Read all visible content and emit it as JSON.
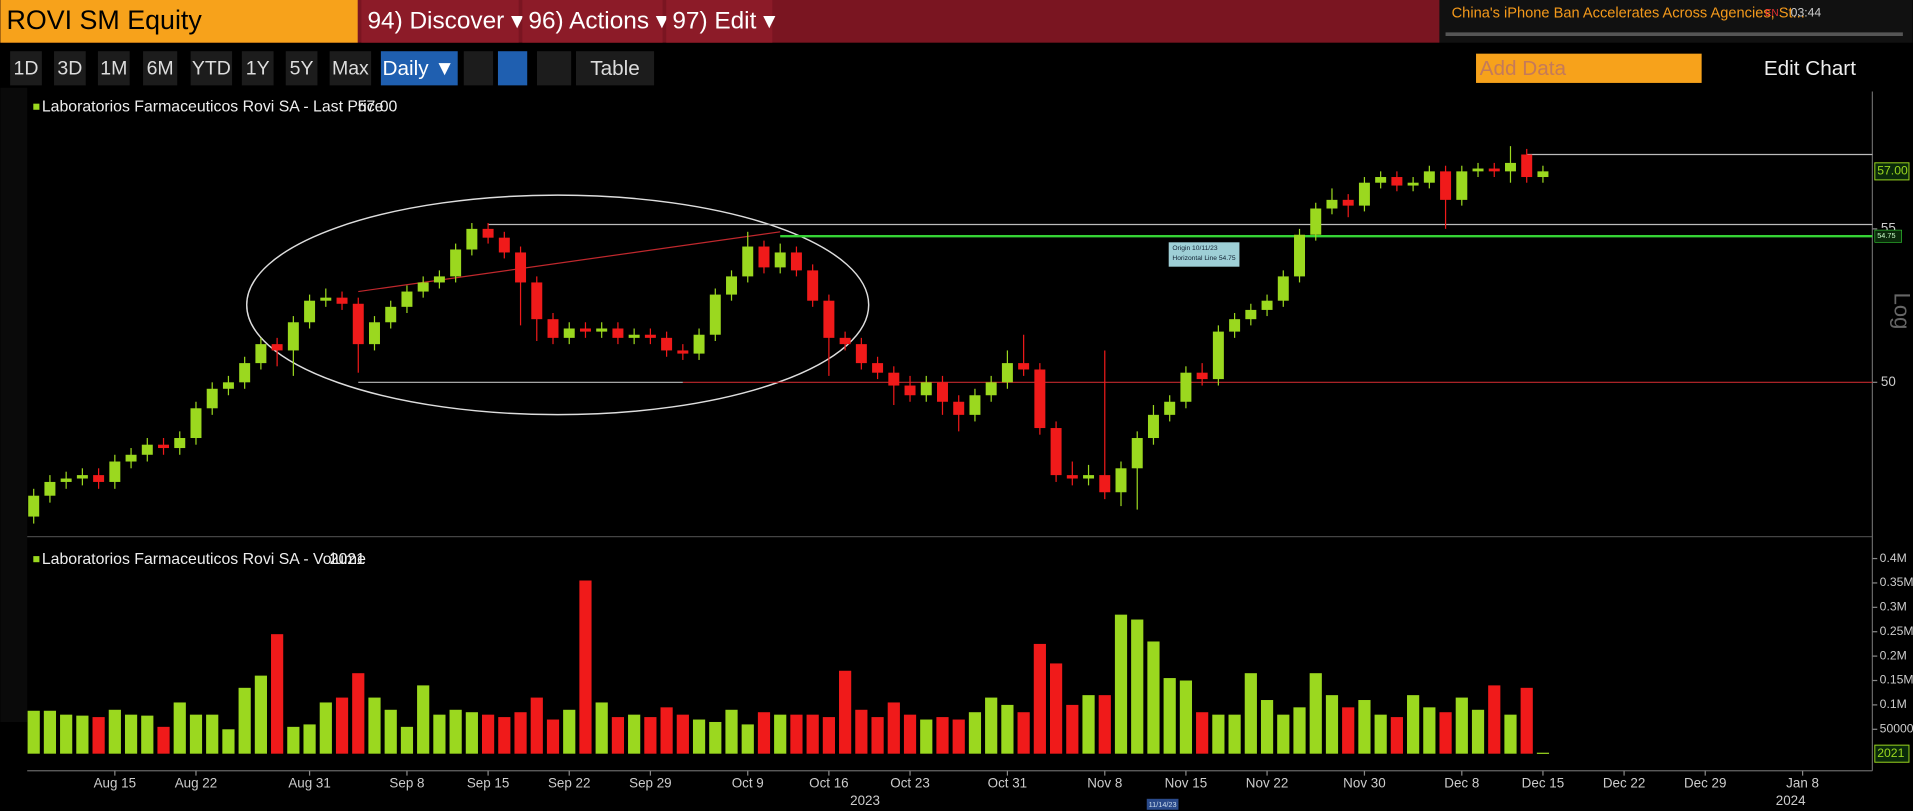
{
  "toolbar": {
    "security": "ROVI SM Equity",
    "menus": [
      "94) Discover ▾",
      "96) Actions ▾",
      "97) Edit ▾"
    ],
    "news": "China's iPhone Ban Accelerates Across Agencies, St...",
    "news_lang": "EN",
    "news_time": "03:44",
    "ranges": [
      "1D",
      "3D",
      "1M",
      "6M",
      "YTD",
      "1Y",
      "5Y",
      "Max"
    ],
    "frequency": "Daily ▼",
    "table": "Table",
    "add_data": "Add Data",
    "edit_chart": "Edit Chart"
  },
  "price_chart": {
    "type": "candlestick",
    "legend": "Laboratorios Farmaceuticos Rovi SA - Last Price",
    "last_label": "57.00",
    "axis_label": "Log",
    "log": true,
    "up_color": "#9bd81f",
    "down_color": "#f01a1a",
    "ylim": [
      45.5,
      59.9
    ],
    "yticks": [
      50,
      55
    ],
    "xlim": [
      -0.4,
      113.3
    ],
    "xticks": [
      {
        "value": 5,
        "label": "Aug 15"
      },
      {
        "value": 10,
        "label": "Aug 22"
      },
      {
        "value": 17,
        "label": "Aug 31"
      },
      {
        "value": 23,
        "label": "Sep 8"
      },
      {
        "value": 28,
        "label": "Sep 15"
      },
      {
        "value": 33,
        "label": "Sep 22"
      },
      {
        "value": 38,
        "label": "Sep 29"
      },
      {
        "value": 44,
        "label": "Oct 9"
      },
      {
        "value": 49,
        "label": "Oct 16"
      },
      {
        "value": 54,
        "label": "Oct 23"
      },
      {
        "value": 60,
        "label": "Oct 31"
      },
      {
        "value": 66,
        "label": "Nov 8"
      },
      {
        "value": 71,
        "label": "Nov 15"
      },
      {
        "value": 76,
        "label": "Nov 22"
      },
      {
        "value": 82,
        "label": "Nov 30"
      },
      {
        "value": 88,
        "label": "Dec 8"
      },
      {
        "value": 93,
        "label": "Dec 15"
      },
      {
        "value": 98,
        "label": "Dec 22"
      },
      {
        "value": 103,
        "label": "Dec 29"
      },
      {
        "value": 109,
        "label": "Jan 8"
      }
    ],
    "years": [
      "2023",
      "2024"
    ],
    "crosshair_date": "11/14/23",
    "candles": [
      [
        46.0,
        46.8,
        45.8,
        46.6
      ],
      [
        46.6,
        47.2,
        46.4,
        47.0
      ],
      [
        47.0,
        47.3,
        46.8,
        47.1
      ],
      [
        47.1,
        47.4,
        46.9,
        47.2
      ],
      [
        47.2,
        47.4,
        46.8,
        47.0
      ],
      [
        47.0,
        47.8,
        46.8,
        47.6
      ],
      [
        47.6,
        48.0,
        47.4,
        47.8
      ],
      [
        47.8,
        48.3,
        47.6,
        48.1
      ],
      [
        48.1,
        48.3,
        47.8,
        48.0
      ],
      [
        48.0,
        48.5,
        47.8,
        48.3
      ],
      [
        48.3,
        49.4,
        48.1,
        49.2
      ],
      [
        49.2,
        50.0,
        49.0,
        49.8
      ],
      [
        49.8,
        50.2,
        49.6,
        50.0
      ],
      [
        50.0,
        50.8,
        49.8,
        50.6
      ],
      [
        50.6,
        51.4,
        50.4,
        51.2
      ],
      [
        51.2,
        51.4,
        50.5,
        51.0
      ],
      [
        51.0,
        52.1,
        50.2,
        51.9
      ],
      [
        51.9,
        52.8,
        51.7,
        52.6
      ],
      [
        52.6,
        53.0,
        52.4,
        52.7
      ],
      [
        52.7,
        52.9,
        52.3,
        52.5
      ],
      [
        52.5,
        52.7,
        50.3,
        51.2
      ],
      [
        51.2,
        52.1,
        51.0,
        51.9
      ],
      [
        51.9,
        52.6,
        51.7,
        52.4
      ],
      [
        52.4,
        53.1,
        52.2,
        52.9
      ],
      [
        52.9,
        53.4,
        52.7,
        53.2
      ],
      [
        53.2,
        53.6,
        53.0,
        53.4
      ],
      [
        53.4,
        54.5,
        53.2,
        54.3
      ],
      [
        54.3,
        55.2,
        54.1,
        55.0
      ],
      [
        55.0,
        55.2,
        54.5,
        54.7
      ],
      [
        54.7,
        54.9,
        54.0,
        54.2
      ],
      [
        54.2,
        54.4,
        51.8,
        53.2
      ],
      [
        53.2,
        53.4,
        51.3,
        52.0
      ],
      [
        52.0,
        52.2,
        51.2,
        51.4
      ],
      [
        51.4,
        51.9,
        51.2,
        51.7
      ],
      [
        51.7,
        51.9,
        51.4,
        51.6
      ],
      [
        51.6,
        51.9,
        51.4,
        51.7
      ],
      [
        51.7,
        51.9,
        51.2,
        51.4
      ],
      [
        51.4,
        51.7,
        51.2,
        51.5
      ],
      [
        51.5,
        51.7,
        51.2,
        51.4
      ],
      [
        51.4,
        51.6,
        50.8,
        51.0
      ],
      [
        51.0,
        51.2,
        50.7,
        50.9
      ],
      [
        50.9,
        51.7,
        50.7,
        51.5
      ],
      [
        51.5,
        53.0,
        51.3,
        52.8
      ],
      [
        52.8,
        53.6,
        52.6,
        53.4
      ],
      [
        53.4,
        54.9,
        53.2,
        54.4
      ],
      [
        54.4,
        54.6,
        53.5,
        53.7
      ],
      [
        53.7,
        54.5,
        53.5,
        54.2
      ],
      [
        54.2,
        54.4,
        53.4,
        53.6
      ],
      [
        53.6,
        53.8,
        52.4,
        52.6
      ],
      [
        52.6,
        52.8,
        50.2,
        51.4
      ],
      [
        51.4,
        51.6,
        51.0,
        51.2
      ],
      [
        51.2,
        51.4,
        50.4,
        50.6
      ],
      [
        50.6,
        50.8,
        50.1,
        50.3
      ],
      [
        50.3,
        50.5,
        49.3,
        49.9
      ],
      [
        49.9,
        50.2,
        49.4,
        49.6
      ],
      [
        49.6,
        50.2,
        49.4,
        50.0
      ],
      [
        50.0,
        50.2,
        49.0,
        49.4
      ],
      [
        49.4,
        49.6,
        48.5,
        49.0
      ],
      [
        49.0,
        49.8,
        48.8,
        49.6
      ],
      [
        49.6,
        50.2,
        49.4,
        50.0
      ],
      [
        50.0,
        51.0,
        49.8,
        50.6
      ],
      [
        50.6,
        51.5,
        50.2,
        50.4
      ],
      [
        50.4,
        50.6,
        48.4,
        48.6
      ],
      [
        48.6,
        48.8,
        47.0,
        47.2
      ],
      [
        47.2,
        47.6,
        46.9,
        47.1
      ],
      [
        47.1,
        47.5,
        46.9,
        47.2
      ],
      [
        47.2,
        51.0,
        46.5,
        46.7
      ],
      [
        46.7,
        47.6,
        46.3,
        47.4
      ],
      [
        47.4,
        48.5,
        46.2,
        48.3
      ],
      [
        48.3,
        49.3,
        48.1,
        49.0
      ],
      [
        49.0,
        49.6,
        48.8,
        49.4
      ],
      [
        49.4,
        50.5,
        49.2,
        50.3
      ],
      [
        50.3,
        50.6,
        49.9,
        50.1
      ],
      [
        50.1,
        51.8,
        49.9,
        51.6
      ],
      [
        51.6,
        52.2,
        51.4,
        52.0
      ],
      [
        52.0,
        52.5,
        51.8,
        52.3
      ],
      [
        52.3,
        52.8,
        52.1,
        52.6
      ],
      [
        52.6,
        53.6,
        52.4,
        53.4
      ],
      [
        53.4,
        55.0,
        53.2,
        54.8
      ],
      [
        54.8,
        55.9,
        54.6,
        55.7
      ],
      [
        55.7,
        56.4,
        55.5,
        56.0
      ],
      [
        56.0,
        56.2,
        55.4,
        55.8
      ],
      [
        55.8,
        56.8,
        55.6,
        56.6
      ],
      [
        56.6,
        57.0,
        56.4,
        56.8
      ],
      [
        56.8,
        57.0,
        56.3,
        56.5
      ],
      [
        56.5,
        56.8,
        56.3,
        56.6
      ],
      [
        56.6,
        57.2,
        56.4,
        57.0
      ],
      [
        57.0,
        57.2,
        55.0,
        56.0
      ],
      [
        56.0,
        57.2,
        55.8,
        57.0
      ],
      [
        57.0,
        57.3,
        56.8,
        57.1
      ],
      [
        57.1,
        57.3,
        56.8,
        57.0
      ],
      [
        57.0,
        57.9,
        56.6,
        57.3
      ],
      [
        57.6,
        57.8,
        56.6,
        56.8
      ],
      [
        56.8,
        57.2,
        56.6,
        57.0
      ]
    ],
    "horizontal_lines": [
      {
        "level": 54.75,
        "from": 46,
        "color": "#35d335",
        "annotation": [
          "Origin 10/11/23",
          "Horizontal Line 54.75"
        ]
      },
      {
        "level": 55.15,
        "from": 28,
        "color": "#bbbbbb"
      },
      {
        "level": 50.0,
        "from": 40,
        "color": "#c0282d"
      },
      {
        "level": 57.6,
        "from": 92,
        "color": "#bbbbbb"
      }
    ],
    "segments": [
      {
        "x": [
          20,
          46
        ],
        "y": [
          52.9,
          54.9
        ],
        "color": "#c0282d"
      },
      {
        "x": [
          20,
          40
        ],
        "y": [
          50.0,
          50.0
        ],
        "color": "#bbbbbb"
      }
    ]
  },
  "volume_chart": {
    "type": "bar",
    "legend": "Laboratorios Farmaceuticos Rovi SA - Volume",
    "ylim": [
      0,
      420000
    ],
    "yticks": [
      50000,
      {
        "value": 100000,
        "label": "0.1M"
      },
      {
        "value": 150000,
        "label": "0.15M"
      },
      {
        "value": 200000,
        "label": "0.2M"
      },
      {
        "value": 250000,
        "label": "0.25M"
      },
      {
        "value": 300000,
        "label": "0.3M"
      },
      {
        "value": 350000,
        "label": "0.35M"
      },
      {
        "value": 400000,
        "label": "0.4M"
      }
    ],
    "values": [
      88000,
      88000,
      80000,
      78000,
      75000,
      90000,
      80000,
      78000,
      55000,
      105000,
      80000,
      80000,
      50000,
      135000,
      160000,
      245000,
      55000,
      60000,
      105000,
      115000,
      165000,
      115000,
      90000,
      55000,
      140000,
      80000,
      90000,
      85000,
      80000,
      75000,
      85000,
      115000,
      70000,
      90000,
      355000,
      105000,
      75000,
      80000,
      75000,
      95000,
      80000,
      70000,
      65000,
      90000,
      60000,
      85000,
      80000,
      80000,
      80000,
      75000,
      170000,
      90000,
      75000,
      105000,
      80000,
      70000,
      75000,
      70000,
      85000,
      115000,
      100000,
      85000,
      225000,
      185000,
      100000,
      120000,
      120000,
      285000,
      275000,
      230000,
      155000,
      150000,
      85000,
      80000,
      80000,
      165000,
      110000,
      80000,
      95000,
      165000,
      120000,
      95000,
      110000,
      80000,
      75000,
      120000,
      95000,
      85000,
      115000,
      90000,
      140000,
      80000,
      135000,
      2021
    ]
  }
}
